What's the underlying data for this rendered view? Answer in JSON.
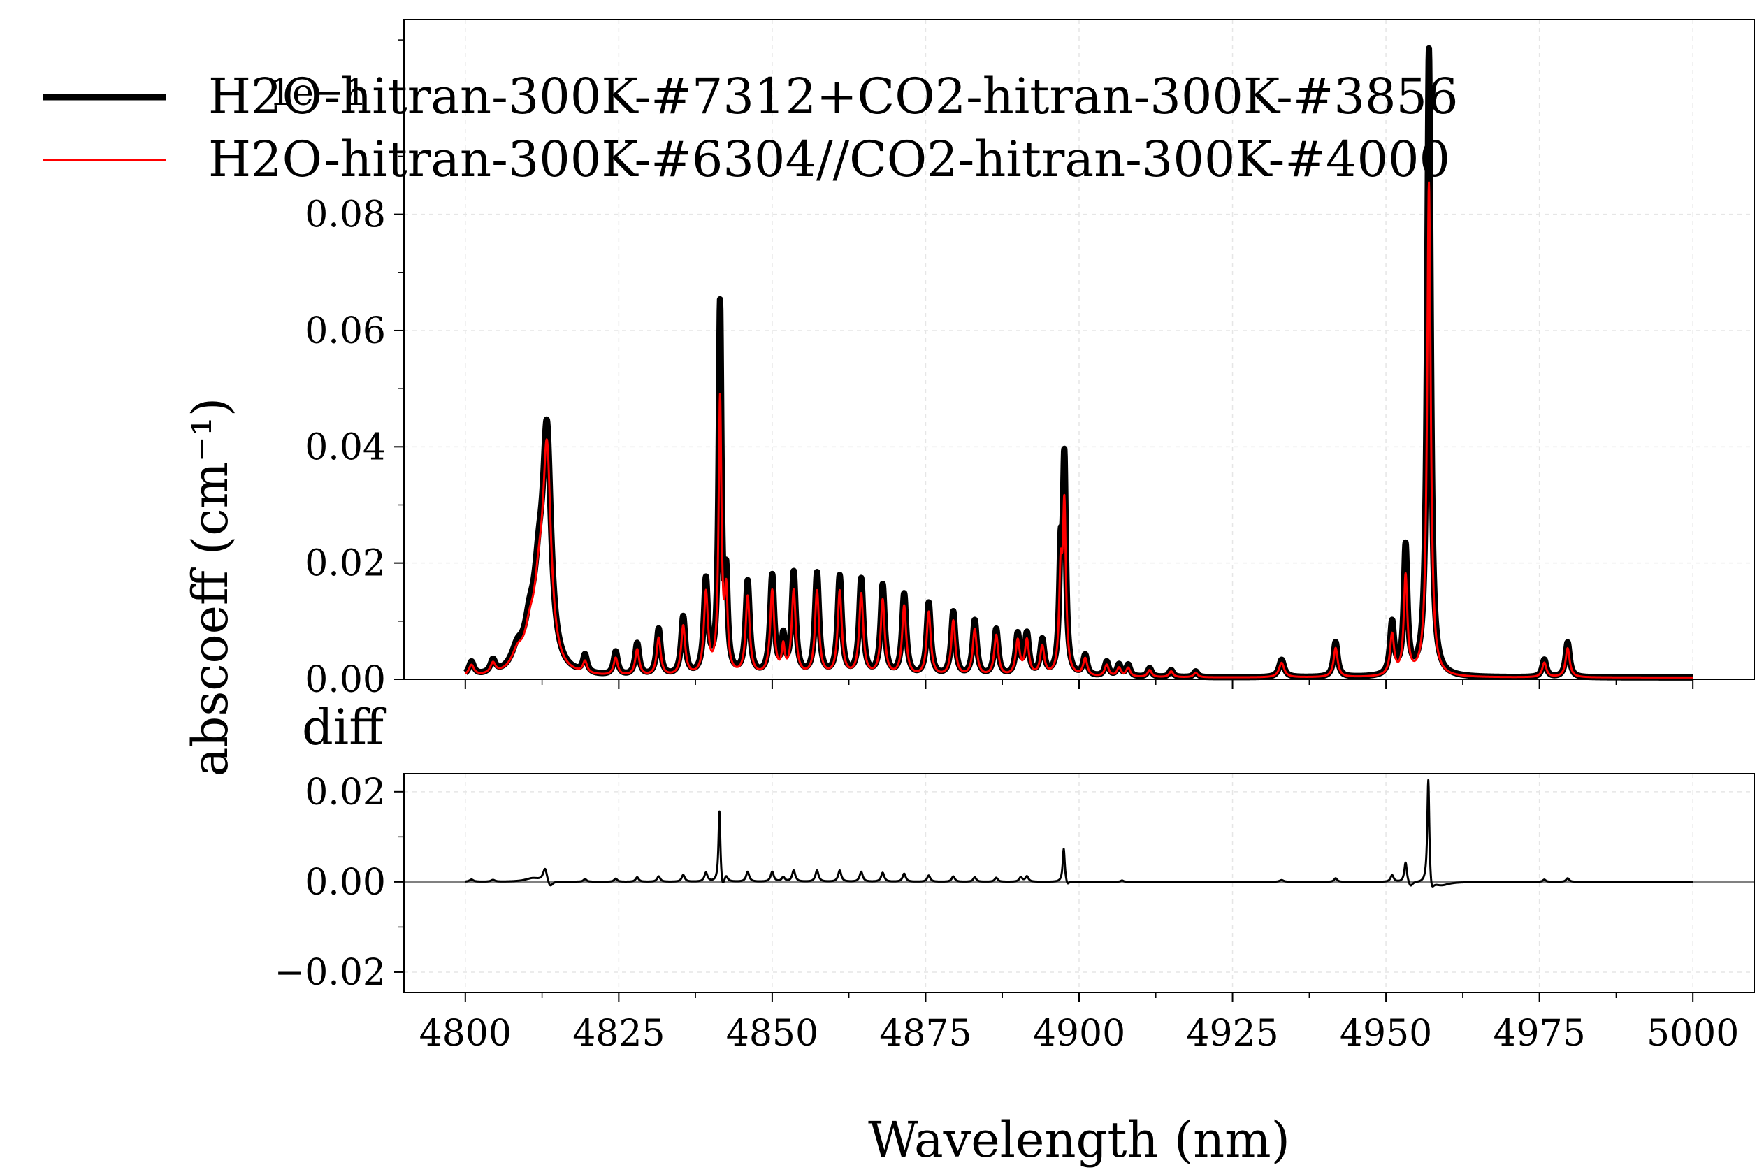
{
  "chart_data": [
    {
      "type": "line",
      "panel": "top",
      "ylabel": "abscoeff (cm⁻¹)",
      "xlim": [
        4790,
        5010
      ],
      "ylim": [
        0,
        0.1135
      ],
      "x_ticks": [
        4800,
        4825,
        4850,
        4875,
        4900,
        4925,
        4950,
        4975,
        5000
      ],
      "y_ticks": [
        0.0,
        0.02,
        0.04,
        0.06,
        0.08
      ],
      "y_tick_labels": [
        "0.00",
        "0.02",
        "0.04",
        "0.06",
        "0.08"
      ],
      "y_exponent_label": "1e−1",
      "grid": true,
      "legend_position": "top-left",
      "baseline": 0.0003,
      "series": [
        {
          "name": "H2O-hitran-300K-#7312+CO2-hitran-300K-#3856",
          "color": "#000000",
          "peaks": [
            [
              4801.0,
              0.0023,
              0.5
            ],
            [
              4804.5,
              0.0022,
              0.5
            ],
            [
              4808.5,
              0.0035,
              1.2
            ],
            [
              4810.5,
              0.006,
              1.0
            ],
            [
              4812.0,
              0.013,
              1.0
            ],
            [
              4813.3,
              0.0385,
              0.8
            ],
            [
              4819.5,
              0.003,
              0.4
            ],
            [
              4824.5,
              0.004,
              0.4
            ],
            [
              4828.0,
              0.0055,
              0.4
            ],
            [
              4831.5,
              0.008,
              0.4
            ],
            [
              4835.5,
              0.01,
              0.4
            ],
            [
              4839.2,
              0.016,
              0.4
            ],
            [
              4841.5,
              0.063,
              0.28
            ],
            [
              4842.5,
              0.015,
              0.3
            ],
            [
              4846.0,
              0.016,
              0.4
            ],
            [
              4850.0,
              0.017,
              0.4
            ],
            [
              4851.8,
              0.006,
              0.3
            ],
            [
              4853.5,
              0.0175,
              0.4
            ],
            [
              4857.3,
              0.0175,
              0.4
            ],
            [
              4861.0,
              0.017,
              0.4
            ],
            [
              4864.5,
              0.0165,
              0.4
            ],
            [
              4868.0,
              0.0155,
              0.4
            ],
            [
              4871.5,
              0.014,
              0.4
            ],
            [
              4875.5,
              0.0125,
              0.4
            ],
            [
              4879.5,
              0.011,
              0.4
            ],
            [
              4883.0,
              0.0095,
              0.4
            ],
            [
              4886.5,
              0.008,
              0.4
            ],
            [
              4890.0,
              0.007,
              0.4
            ],
            [
              4891.5,
              0.007,
              0.4
            ],
            [
              4894.0,
              0.006,
              0.4
            ],
            [
              4897.0,
              0.018,
              0.3
            ],
            [
              4897.6,
              0.0355,
              0.3
            ],
            [
              4901.0,
              0.0035,
              0.4
            ],
            [
              4904.5,
              0.0025,
              0.4
            ],
            [
              4906.5,
              0.002,
              0.4
            ],
            [
              4908.0,
              0.002,
              0.4
            ],
            [
              4911.5,
              0.0015,
              0.4
            ],
            [
              4915.0,
              0.0012,
              0.4
            ],
            [
              4919.0,
              0.001,
              0.4
            ],
            [
              4933.0,
              0.003,
              0.5
            ],
            [
              4941.8,
              0.006,
              0.4
            ],
            [
              4951.0,
              0.009,
              0.4
            ],
            [
              4953.2,
              0.022,
              0.35
            ],
            [
              4957.0,
              0.108,
              0.35
            ],
            [
              4975.8,
              0.003,
              0.4
            ],
            [
              4979.6,
              0.006,
              0.4
            ]
          ]
        },
        {
          "name": "H2O-hitran-300K-#6304//CO2-hitran-300K-#4000",
          "color": "#ff0000",
          "peaks": [
            [
              4801.0,
              0.0018,
              0.5
            ],
            [
              4804.5,
              0.0018,
              0.5
            ],
            [
              4808.5,
              0.003,
              1.2
            ],
            [
              4810.5,
              0.005,
              1.0
            ],
            [
              4812.0,
              0.011,
              1.0
            ],
            [
              4813.3,
              0.036,
              0.8
            ],
            [
              4819.5,
              0.002,
              0.4
            ],
            [
              4824.5,
              0.003,
              0.4
            ],
            [
              4828.0,
              0.0045,
              0.4
            ],
            [
              4831.5,
              0.0065,
              0.4
            ],
            [
              4835.5,
              0.0085,
              0.4
            ],
            [
              4839.2,
              0.014,
              0.4
            ],
            [
              4841.5,
              0.047,
              0.28
            ],
            [
              4842.5,
              0.013,
              0.3
            ],
            [
              4846.0,
              0.0135,
              0.4
            ],
            [
              4850.0,
              0.0145,
              0.4
            ],
            [
              4851.8,
              0.0045,
              0.3
            ],
            [
              4853.5,
              0.0145,
              0.4
            ],
            [
              4857.3,
              0.0145,
              0.4
            ],
            [
              4861.0,
              0.0145,
              0.4
            ],
            [
              4864.5,
              0.014,
              0.4
            ],
            [
              4868.0,
              0.013,
              0.4
            ],
            [
              4871.5,
              0.012,
              0.4
            ],
            [
              4875.5,
              0.011,
              0.4
            ],
            [
              4879.5,
              0.0095,
              0.4
            ],
            [
              4883.0,
              0.008,
              0.4
            ],
            [
              4886.5,
              0.007,
              0.4
            ],
            [
              4890.0,
              0.006,
              0.4
            ],
            [
              4891.5,
              0.006,
              0.4
            ],
            [
              4894.0,
              0.005,
              0.4
            ],
            [
              4897.0,
              0.016,
              0.3
            ],
            [
              4897.6,
              0.028,
              0.3
            ],
            [
              4901.0,
              0.003,
              0.4
            ],
            [
              4904.5,
              0.002,
              0.4
            ],
            [
              4906.5,
              0.0015,
              0.4
            ],
            [
              4908.0,
              0.0015,
              0.4
            ],
            [
              4911.5,
              0.0012,
              0.4
            ],
            [
              4915.0,
              0.001,
              0.4
            ],
            [
              4919.0,
              0.0008,
              0.4
            ],
            [
              4933.0,
              0.0025,
              0.5
            ],
            [
              4941.8,
              0.005,
              0.4
            ],
            [
              4951.0,
              0.007,
              0.4
            ],
            [
              4953.2,
              0.017,
              0.35
            ],
            [
              4957.0,
              0.085,
              0.35
            ],
            [
              4975.8,
              0.0025,
              0.4
            ],
            [
              4979.6,
              0.005,
              0.4
            ]
          ]
        }
      ]
    },
    {
      "type": "line",
      "panel": "bottom",
      "title": "diff",
      "xlabel": "Wavelength (nm)",
      "xlim": [
        4790,
        5010
      ],
      "ylim": [
        -0.0245,
        0.024
      ],
      "x_ticks": [
        4800,
        4825,
        4850,
        4875,
        4900,
        4925,
        4950,
        4975,
        5000
      ],
      "x_tick_labels": [
        "4800",
        "4825",
        "4850",
        "4875",
        "4900",
        "4925",
        "4950",
        "4975",
        "5000"
      ],
      "y_ticks": [
        -0.02,
        0.0,
        0.02
      ],
      "y_tick_labels": [
        "−0.02",
        "0.00",
        "0.02"
      ],
      "grid": true,
      "zero_line": true,
      "series": [
        {
          "color": "#000000",
          "features": [
            [
              4801.0,
              0.0005,
              0.4
            ],
            [
              4804.5,
              0.0004,
              0.4
            ],
            [
              4811.0,
              0.0008,
              1.5
            ],
            [
              4813.0,
              0.003,
              0.4
            ],
            [
              4813.8,
              -0.0015,
              0.5
            ],
            [
              4819.5,
              0.0006,
              0.3
            ],
            [
              4824.5,
              0.0007,
              0.3
            ],
            [
              4828.0,
              0.001,
              0.3
            ],
            [
              4831.5,
              0.0012,
              0.3
            ],
            [
              4835.5,
              0.0015,
              0.3
            ],
            [
              4839.2,
              0.002,
              0.3
            ],
            [
              4841.4,
              0.016,
              0.18
            ],
            [
              4841.9,
              -0.002,
              0.3
            ],
            [
              4842.5,
              0.0012,
              0.3
            ],
            [
              4846.0,
              0.0022,
              0.3
            ],
            [
              4850.0,
              0.0022,
              0.3
            ],
            [
              4851.8,
              0.001,
              0.3
            ],
            [
              4853.5,
              0.0025,
              0.3
            ],
            [
              4857.3,
              0.0025,
              0.3
            ],
            [
              4861.0,
              0.0025,
              0.3
            ],
            [
              4864.5,
              0.0022,
              0.3
            ],
            [
              4868.0,
              0.002,
              0.3
            ],
            [
              4871.5,
              0.0018,
              0.3
            ],
            [
              4875.5,
              0.0014,
              0.3
            ],
            [
              4879.5,
              0.0012,
              0.3
            ],
            [
              4883.0,
              0.001,
              0.3
            ],
            [
              4886.5,
              0.0009,
              0.3
            ],
            [
              4890.5,
              0.001,
              0.3
            ],
            [
              4891.5,
              0.0012,
              0.3
            ],
            [
              4897.5,
              0.0075,
              0.2
            ],
            [
              4898.1,
              -0.001,
              0.3
            ],
            [
              4907.0,
              0.0003,
              0.3
            ],
            [
              4933.0,
              0.0004,
              0.4
            ],
            [
              4941.8,
              0.0008,
              0.3
            ],
            [
              4951.0,
              0.0015,
              0.3
            ],
            [
              4953.2,
              0.0045,
              0.25
            ],
            [
              4954.0,
              -0.0012,
              0.4
            ],
            [
              4956.9,
              0.024,
              0.2
            ],
            [
              4957.4,
              -0.003,
              0.4
            ],
            [
              4959.0,
              -0.0008,
              1.5
            ],
            [
              4975.8,
              0.0005,
              0.3
            ],
            [
              4979.6,
              0.0008,
              0.3
            ]
          ]
        }
      ]
    }
  ]
}
